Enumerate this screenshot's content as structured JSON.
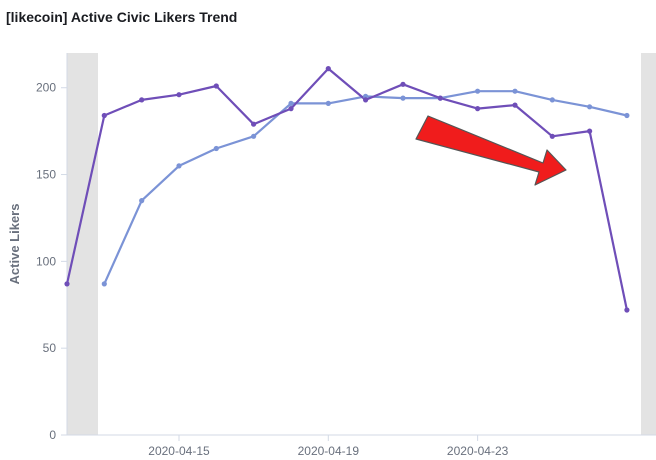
{
  "panel": {
    "title": "[likecoin] Active Civic Likers Trend"
  },
  "chart_data": {
    "type": "line",
    "title": "[likecoin] Active Civic Likers Trend",
    "xlabel": "",
    "ylabel": "Active Likers",
    "x": [
      "2020-04-12",
      "2020-04-13",
      "2020-04-14",
      "2020-04-15",
      "2020-04-16",
      "2020-04-17",
      "2020-04-18",
      "2020-04-19",
      "2020-04-20",
      "2020-04-21",
      "2020-04-22",
      "2020-04-23",
      "2020-04-24",
      "2020-04-25",
      "2020-04-26",
      "2020-04-27"
    ],
    "x_ticks": [
      "2020-04-15",
      "2020-04-19",
      "2020-04-23"
    ],
    "y_ticks": [
      0,
      50,
      100,
      150,
      200
    ],
    "ylim": [
      0,
      220
    ],
    "grid": false,
    "legend": "none",
    "shaded_regions": [
      "start",
      "end"
    ],
    "annotation": "red arrow pointing down-right",
    "series": [
      {
        "color": "#6f4eb8",
        "values": [
          87,
          184,
          193,
          196,
          201,
          179,
          188,
          211,
          193,
          202,
          194,
          188,
          190,
          172,
          175,
          72
        ]
      },
      {
        "color": "#7b93d6",
        "values": [
          null,
          87,
          135,
          155,
          165,
          172,
          191,
          191,
          195,
          194,
          194,
          198,
          198,
          193,
          189,
          184
        ]
      }
    ]
  }
}
